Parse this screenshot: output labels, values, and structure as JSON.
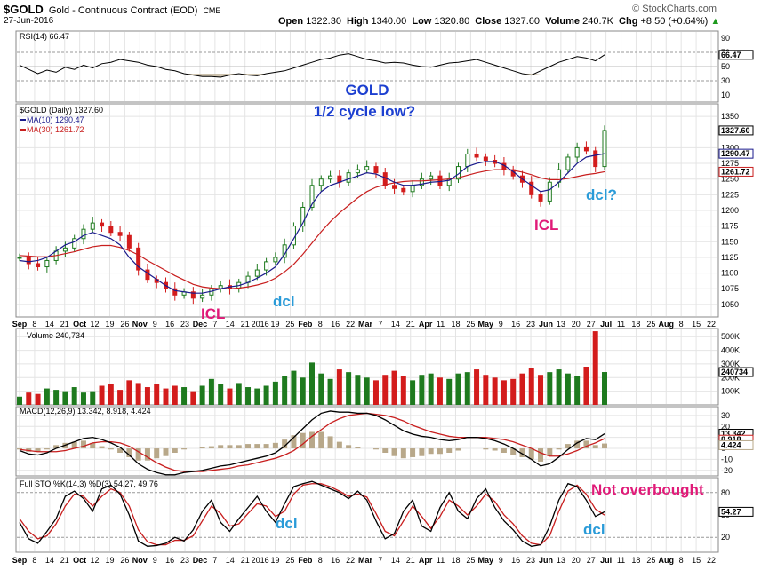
{
  "header": {
    "symbol": "$GOLD",
    "name": "Gold - Continuous Contract (EOD)",
    "exchange": "CME",
    "date": "27-Jun-2016",
    "source": "© StockCharts.com",
    "open_label": "Open",
    "open": "1322.30",
    "high_label": "High",
    "high": "1340.00",
    "low_label": "Low",
    "low": "1320.80",
    "close_label": "Close",
    "close": "1327.60",
    "volume_label": "Volume",
    "volume": "240.7K",
    "chg_label": "Chg",
    "chg": "+8.50 (+0.64%)",
    "chg_arrow": "▲"
  },
  "colors": {
    "price_up": "#1e7a1e",
    "price_down": "#d31c1c",
    "ma10": "#1a1a8c",
    "ma30": "#c81e1e",
    "annotation_blue": "#1c3fd0",
    "annotation_cyan": "#2a9bd8",
    "annotation_magenta": "#e01a78",
    "rsi_fill": "#b8a88a",
    "panel_bg": "#ffffff",
    "frame_bg": "#ffffff"
  },
  "chart_data": [
    {
      "type": "line",
      "panel": "rsi",
      "legend": "RSI(14) 66.47",
      "value_tag": "66.47",
      "ylim": [
        0,
        100
      ],
      "y_ticks": [
        "90",
        "70",
        "50",
        "30",
        "10"
      ],
      "values": [
        52,
        46,
        40,
        45,
        42,
        49,
        46,
        52,
        48,
        54,
        56,
        60,
        58,
        56,
        52,
        50,
        46,
        44,
        40,
        38,
        36,
        36,
        35,
        38,
        40,
        38,
        37,
        40,
        42,
        44,
        48,
        52,
        56,
        60,
        62,
        66,
        68,
        64,
        60,
        58,
        55,
        56,
        55,
        52,
        50,
        49,
        52,
        55,
        56,
        58,
        60,
        56,
        52,
        48,
        44,
        40,
        38,
        44,
        50,
        56,
        60,
        64,
        62,
        58,
        66.47
      ]
    },
    {
      "type": "candlestick",
      "panel": "price",
      "legend": [
        "$GOLD (Daily) 1327.60",
        "MA(10) 1290.47",
        "MA(30) 1261.72"
      ],
      "tags": [
        "1327.60",
        "1290.47",
        "1261.72"
      ],
      "ylim": [
        1030,
        1370
      ],
      "y_ticks": [
        "1350",
        "1300",
        "1275",
        "1250",
        "1225",
        "1200",
        "1175",
        "1150",
        "1125",
        "1100",
        "1075",
        "1050"
      ],
      "x_ticks": [
        "Sep",
        "8",
        "14",
        "21",
        "Oct",
        "12",
        "19",
        "26",
        "Nov",
        "9",
        "16",
        "23",
        "Dec",
        "7",
        "14",
        "21",
        "2016",
        "19",
        "25",
        "Feb",
        "8",
        "16",
        "22",
        "Mar",
        "7",
        "14",
        "21",
        "Apr",
        "11",
        "18",
        "25",
        "May",
        "9",
        "16",
        "23",
        "Jun",
        "13",
        "20",
        "27",
        "Jul",
        "11",
        "18",
        "25",
        "Aug",
        "8",
        "15",
        "22"
      ],
      "close": [
        1125,
        1115,
        1110,
        1120,
        1135,
        1140,
        1155,
        1170,
        1180,
        1175,
        1165,
        1160,
        1140,
        1105,
        1090,
        1085,
        1075,
        1065,
        1070,
        1060,
        1065,
        1075,
        1080,
        1075,
        1085,
        1095,
        1105,
        1118,
        1125,
        1145,
        1175,
        1205,
        1240,
        1250,
        1255,
        1245,
        1260,
        1265,
        1270,
        1260,
        1240,
        1235,
        1230,
        1240,
        1250,
        1255,
        1240,
        1250,
        1270,
        1290,
        1285,
        1280,
        1275,
        1265,
        1255,
        1245,
        1225,
        1215,
        1245,
        1265,
        1285,
        1300,
        1295,
        1270,
        1327.6
      ],
      "ma10": [
        1120,
        1118,
        1120,
        1125,
        1135,
        1145,
        1150,
        1160,
        1165,
        1160,
        1155,
        1145,
        1125,
        1110,
        1100,
        1090,
        1080,
        1072,
        1070,
        1068,
        1068,
        1071,
        1075,
        1078,
        1080,
        1085,
        1092,
        1100,
        1110,
        1130,
        1155,
        1180,
        1210,
        1230,
        1240,
        1245,
        1250,
        1255,
        1260,
        1258,
        1252,
        1245,
        1240,
        1240,
        1242,
        1245,
        1246,
        1248,
        1258,
        1270,
        1275,
        1278,
        1278,
        1272,
        1262,
        1250,
        1240,
        1230,
        1233,
        1245,
        1260,
        1275,
        1285,
        1288,
        1290.47
      ],
      "ma30": [
        1128,
        1127,
        1126,
        1126,
        1128,
        1131,
        1134,
        1138,
        1142,
        1144,
        1144,
        1141,
        1136,
        1129,
        1120,
        1112,
        1104,
        1096,
        1089,
        1082,
        1078,
        1076,
        1075,
        1075,
        1076,
        1078,
        1081,
        1085,
        1092,
        1102,
        1114,
        1130,
        1148,
        1166,
        1182,
        1196,
        1208,
        1220,
        1230,
        1237,
        1241,
        1244,
        1246,
        1247,
        1247,
        1248,
        1249,
        1250,
        1252,
        1256,
        1260,
        1263,
        1265,
        1265,
        1264,
        1261,
        1257,
        1252,
        1249,
        1249,
        1251,
        1254,
        1257,
        1259,
        1261.72
      ]
    },
    {
      "type": "bar",
      "panel": "volume",
      "legend": "Volume 240,734",
      "value_tag": "240734",
      "ylim": [
        0,
        560000
      ],
      "y_ticks": [
        "500K",
        "400K",
        "300K",
        "200K",
        "100K"
      ],
      "values": [
        60000,
        90000,
        80000,
        120000,
        110000,
        100000,
        130000,
        90000,
        100000,
        140000,
        150000,
        110000,
        180000,
        160000,
        130000,
        150000,
        120000,
        140000,
        130000,
        100000,
        140000,
        190000,
        150000,
        120000,
        160000,
        130000,
        120000,
        140000,
        170000,
        210000,
        250000,
        200000,
        310000,
        230000,
        190000,
        260000,
        240000,
        220000,
        200000,
        180000,
        220000,
        250000,
        210000,
        180000,
        220000,
        230000,
        200000,
        190000,
        230000,
        240000,
        260000,
        220000,
        200000,
        180000,
        190000,
        230000,
        270000,
        220000,
        240000,
        260000,
        230000,
        210000,
        280000,
        540000,
        240734
      ]
    },
    {
      "type": "line",
      "panel": "macd",
      "legend": "MACD(12,26,9) 13.342, 8.918, 4.424",
      "tags": [
        "13.342",
        "8.918",
        "4.424"
      ],
      "ylim": [
        -25,
        38
      ],
      "y_ticks": [
        "30",
        "20",
        "10",
        "0",
        "-10",
        "-20"
      ],
      "macd": [
        -2,
        -5,
        -6,
        -4,
        0,
        3,
        6,
        9,
        10,
        8,
        5,
        1,
        -6,
        -14,
        -19,
        -22,
        -24,
        -24,
        -22,
        -21,
        -20,
        -18,
        -16,
        -15,
        -13,
        -11,
        -9,
        -7,
        -4,
        2,
        10,
        18,
        26,
        32,
        34,
        33,
        33,
        32,
        32,
        30,
        26,
        21,
        16,
        13,
        11,
        10,
        8,
        7,
        8,
        10,
        10,
        9,
        7,
        4,
        0,
        -5,
        -10,
        -16,
        -14,
        -8,
        -1,
        5,
        9,
        8,
        13.342
      ],
      "signal": [
        -1,
        -2,
        -3,
        -3,
        -3,
        -2,
        0,
        2,
        5,
        6,
        6,
        5,
        2,
        -3,
        -8,
        -13,
        -17,
        -20,
        -21,
        -21,
        -21,
        -20,
        -19,
        -18,
        -16,
        -15,
        -13,
        -11,
        -9,
        -6,
        -2,
        4,
        11,
        17,
        23,
        27,
        30,
        31,
        32,
        31,
        30,
        28,
        25,
        21,
        18,
        15,
        13,
        11,
        10,
        10,
        10,
        10,
        9,
        8,
        6,
        3,
        0,
        -4,
        -7,
        -7,
        -5,
        -2,
        2,
        5,
        8.918
      ]
    },
    {
      "type": "line",
      "panel": "stochastic",
      "legend": "Full STO %K(14,3) %D(3) 54.27, 49.76",
      "value_tag": "54.27",
      "ylim": [
        0,
        100
      ],
      "y_ticks": [
        "80",
        "50",
        "20"
      ],
      "k": [
        40,
        18,
        12,
        28,
        45,
        75,
        82,
        72,
        55,
        85,
        90,
        78,
        50,
        15,
        8,
        9,
        12,
        20,
        15,
        30,
        55,
        70,
        40,
        28,
        45,
        60,
        75,
        55,
        40,
        65,
        88,
        92,
        95,
        90,
        85,
        80,
        72,
        82,
        70,
        42,
        18,
        25,
        55,
        70,
        35,
        28,
        60,
        80,
        55,
        45,
        72,
        85,
        60,
        42,
        30,
        15,
        8,
        10,
        35,
        70,
        92,
        88,
        70,
        48,
        54.27
      ],
      "d": [
        45,
        28,
        18,
        22,
        38,
        62,
        78,
        75,
        62,
        75,
        85,
        80,
        62,
        30,
        14,
        10,
        10,
        16,
        16,
        22,
        42,
        62,
        52,
        35,
        38,
        52,
        65,
        62,
        48,
        55,
        78,
        90,
        92,
        92,
        88,
        82,
        75,
        78,
        74,
        52,
        28,
        22,
        42,
        62,
        48,
        32,
        48,
        70,
        62,
        50,
        62,
        78,
        68,
        50,
        38,
        22,
        12,
        10,
        22,
        55,
        82,
        90,
        78,
        58,
        49.76
      ]
    }
  ],
  "annotations": {
    "title_line1": "GOLD",
    "title_line2": "1/2 cycle low?",
    "icl_dec": "ICL",
    "dcl_jan": "dcl",
    "icl_jun": "ICL",
    "dcl_jun": "dcl?",
    "not_overbought": "Not overbought",
    "sto_dcl_1": "dcl",
    "sto_dcl_2": "dcl"
  }
}
